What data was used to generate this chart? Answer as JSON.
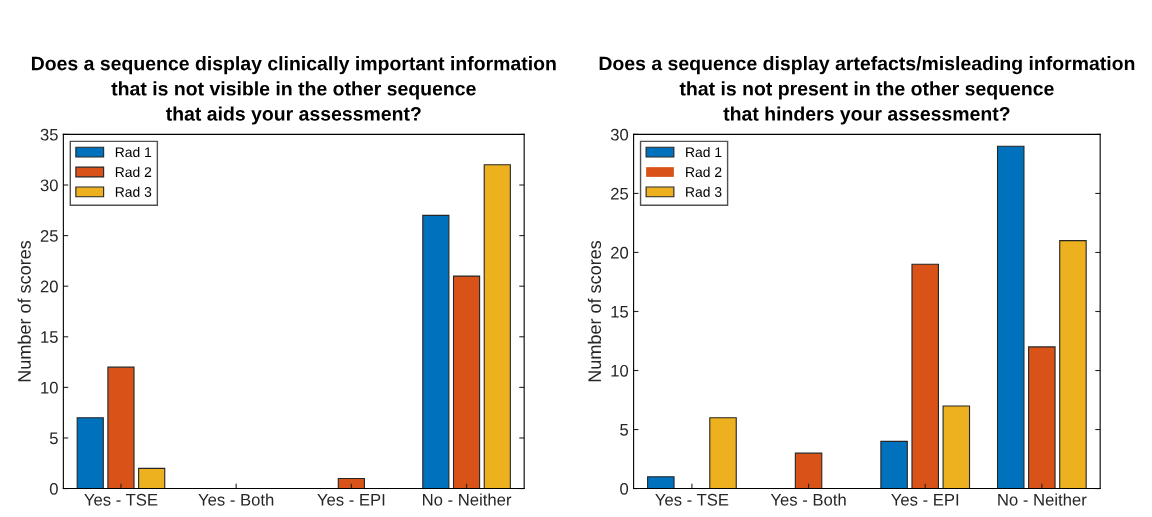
{
  "chart_data": [
    {
      "type": "bar",
      "title": "Does a sequence display clinically important information\nthat is not visible in the other sequence\nthat aids your assessment?",
      "ylabel": "Number of scores",
      "categories": [
        "Yes - TSE",
        "Yes - Both",
        "Yes - EPI",
        "No - Neither"
      ],
      "series": [
        {
          "name": "Rad 1",
          "color": "#0072bd",
          "values": [
            7,
            0,
            0,
            27
          ]
        },
        {
          "name": "Rad 2",
          "color": "#d95319",
          "values": [
            12,
            0,
            1,
            21
          ]
        },
        {
          "name": "Rad 3",
          "color": "#edb120",
          "values": [
            2,
            0,
            0,
            32
          ]
        }
      ],
      "ylim": [
        0,
        35
      ],
      "yticks": [
        0,
        5,
        10,
        15,
        20,
        25,
        30,
        35
      ],
      "grid": false,
      "legend": "top left"
    },
    {
      "type": "bar",
      "title": "Does a sequence display artefacts/misleading information\nthat is not present in the other sequence\nthat hinders your assessment?",
      "ylabel": "Number of scores",
      "categories": [
        "Yes - TSE",
        "Yes - Both",
        "Yes - EPI",
        "No - Neither"
      ],
      "series": [
        {
          "name": "Rad 1",
          "color": "#0072bd",
          "values": [
            1,
            0,
            4,
            29
          ]
        },
        {
          "name": "Rad 2",
          "color": "#d95319",
          "values": [
            0,
            3,
            19,
            12
          ]
        },
        {
          "name": "Rad 3",
          "color": "#edb120",
          "values": [
            6,
            0,
            7,
            21
          ]
        }
      ],
      "ylim": [
        0,
        30
      ],
      "yticks": [
        0,
        5,
        10,
        15,
        20,
        25,
        30
      ],
      "grid": false,
      "legend": "top left"
    }
  ]
}
